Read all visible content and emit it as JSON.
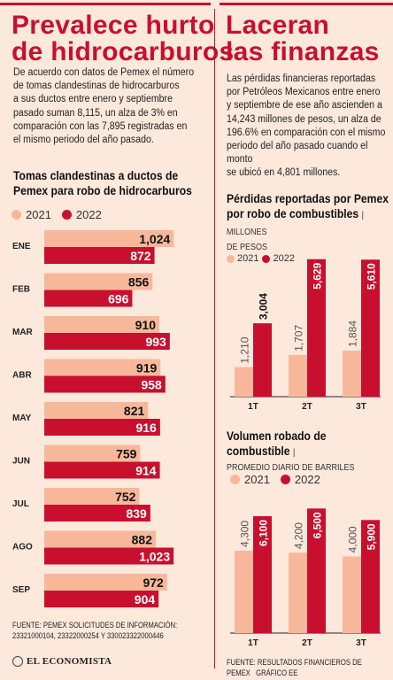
{
  "left": {
    "title_line1": "Prevalece hurto",
    "title_line2": "de hidrocarburos",
    "paragraph": [
      "De acuerdo con datos de Pemex el número",
      "de tomas clandestinas de hidrocarburos",
      "a sus ductos entre enero y septiembre",
      "pasado suman 8,115, un alza de 3% en",
      "comparación con las 7,895 registradas en",
      "el mismo periodo del año pasado."
    ],
    "source_line1": "FUENTE: PEMEX SOLICITUDES DE INFORMACIÓN:",
    "source_line2": "23321000104, 23322000254 Y 330023322000446",
    "logo": "EL ECONOMISTA"
  },
  "right": {
    "title_line1": "Laceran",
    "title_line2": "las finanzas",
    "paragraph": [
      "Las pérdidas financieras reportadas",
      "por Petróleos Mexicanos entre enero",
      "y septiembre de ese año ascienden a",
      "14,243 millones de pesos, un alza de",
      "196.6% en comparación con el mismo",
      "periodo del año pasado cuando el monto",
      "se ubicó en 4,801 millones."
    ],
    "source": "FUENTE: RESULTADOS FINANCIEROS DE PEMEX",
    "credit": "GRÁFICO EE"
  },
  "colors": {
    "c2021": "#f7b89a",
    "c2022": "#c8102e",
    "bg": "#fde8dc"
  },
  "chart_data": [
    {
      "type": "bar",
      "orientation": "horizontal",
      "title": "Tomas clandestinas a ductos de",
      "title_line2": "Pemex para robo de hidrocarburos",
      "categories": [
        "ENE",
        "FEB",
        "MAR",
        "ABR",
        "MAY",
        "JUN",
        "JUL",
        "AGO",
        "SEP"
      ],
      "series": [
        {
          "name": "2021",
          "values": [
            1024,
            856,
            910,
            919,
            821,
            759,
            752,
            882,
            972
          ]
        },
        {
          "name": "2022",
          "values": [
            872,
            696,
            993,
            958,
            916,
            914,
            839,
            1023,
            904
          ]
        }
      ],
      "value_labels": {
        "2021": [
          "1,024",
          "856",
          "910",
          "919",
          "821",
          "759",
          "752",
          "882",
          "972"
        ],
        "2022": [
          "872",
          "696",
          "993",
          "958",
          "916",
          "914",
          "839",
          "1,023",
          "904"
        ]
      },
      "legend_position": "top-left"
    },
    {
      "type": "bar",
      "title": "Pérdidas reportadas por Pemex",
      "title_line2": "por robo de combustibles",
      "unit": "MILLONES",
      "unit_line2": "DE PESOS",
      "categories": [
        "1T",
        "2T",
        "3T"
      ],
      "series": [
        {
          "name": "2021",
          "values": [
            1210,
            1707,
            1884
          ]
        },
        {
          "name": "2022",
          "values": [
            3004,
            5629,
            5610
          ]
        }
      ],
      "value_labels": {
        "2021": [
          "1,210",
          "1,707",
          "1,884"
        ],
        "2022": [
          "3,004",
          "5,629",
          "5,610"
        ]
      },
      "legend_position": "top-left"
    },
    {
      "type": "bar",
      "title": "Volumen robado de combustible",
      "unit": "PROMEDIO DIARIO DE BARRILES",
      "categories": [
        "1T",
        "2T",
        "3T"
      ],
      "series": [
        {
          "name": "2021",
          "values": [
            4300,
            4200,
            4000
          ]
        },
        {
          "name": "2022",
          "values": [
            6100,
            6500,
            5900
          ]
        }
      ],
      "value_labels": {
        "2021": [
          "4,300",
          "4,200",
          "4,000"
        ],
        "2022": [
          "6,100",
          "6,500",
          "5,900"
        ]
      },
      "legend_position": "top-left"
    }
  ]
}
